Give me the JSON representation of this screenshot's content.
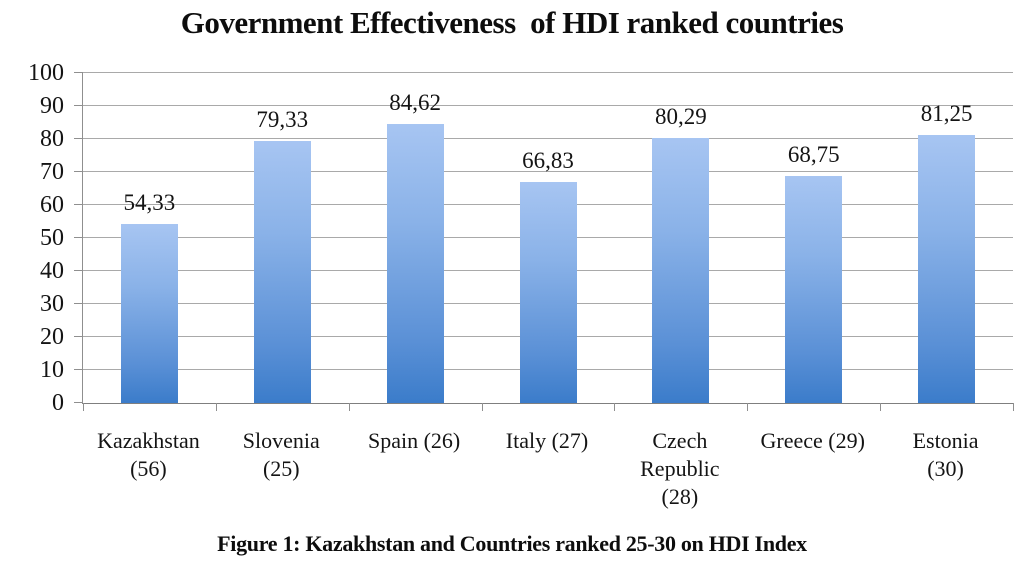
{
  "figure": {
    "title": "Government Effectiveness  of HDI ranked countries",
    "caption": "Figure 1: Kazakhstan and Countries ranked 25-30 on HDI Index"
  },
  "chart_data": {
    "type": "bar",
    "title": "Government Effectiveness of HDI ranked countries",
    "subtitle": "",
    "xlabel": "",
    "ylabel": "",
    "categories": [
      "Kazakhstan (56)",
      "Slovenia (25)",
      "Spain (26)",
      "Italy (27)",
      "Czech Republic (28)",
      "Greece (29)",
      "Estonia (30)"
    ],
    "category_label_lines": [
      [
        "Kazakhstan",
        "(56)"
      ],
      [
        "Slovenia",
        "(25)"
      ],
      [
        "Spain (26)"
      ],
      [
        "Italy (27)"
      ],
      [
        "Czech",
        "Republic",
        "(28)"
      ],
      [
        "Greece (29)"
      ],
      [
        "Estonia",
        "(30)"
      ]
    ],
    "values": [
      54.33,
      79.33,
      84.62,
      66.83,
      80.29,
      68.75,
      81.25
    ],
    "value_labels": [
      "54,33",
      "79,33",
      "84,62",
      "66,83",
      "80,29",
      "68,75",
      "81,25"
    ],
    "ylim": [
      0,
      100
    ],
    "y_ticks": [
      0,
      10,
      20,
      30,
      40,
      50,
      60,
      70,
      80,
      90,
      100
    ],
    "grid": true,
    "legend": false,
    "caption": "Figure 1: Kazakhstan and Countries ranked 25-30 on HDI Index",
    "colors": {
      "bar_top": "#a6c4f1",
      "bar_bottom": "#3b7cca",
      "gridline": "#a9a9a9",
      "axis": "#8f8f8f",
      "text": "#111111",
      "background": "#ffffff"
    }
  }
}
